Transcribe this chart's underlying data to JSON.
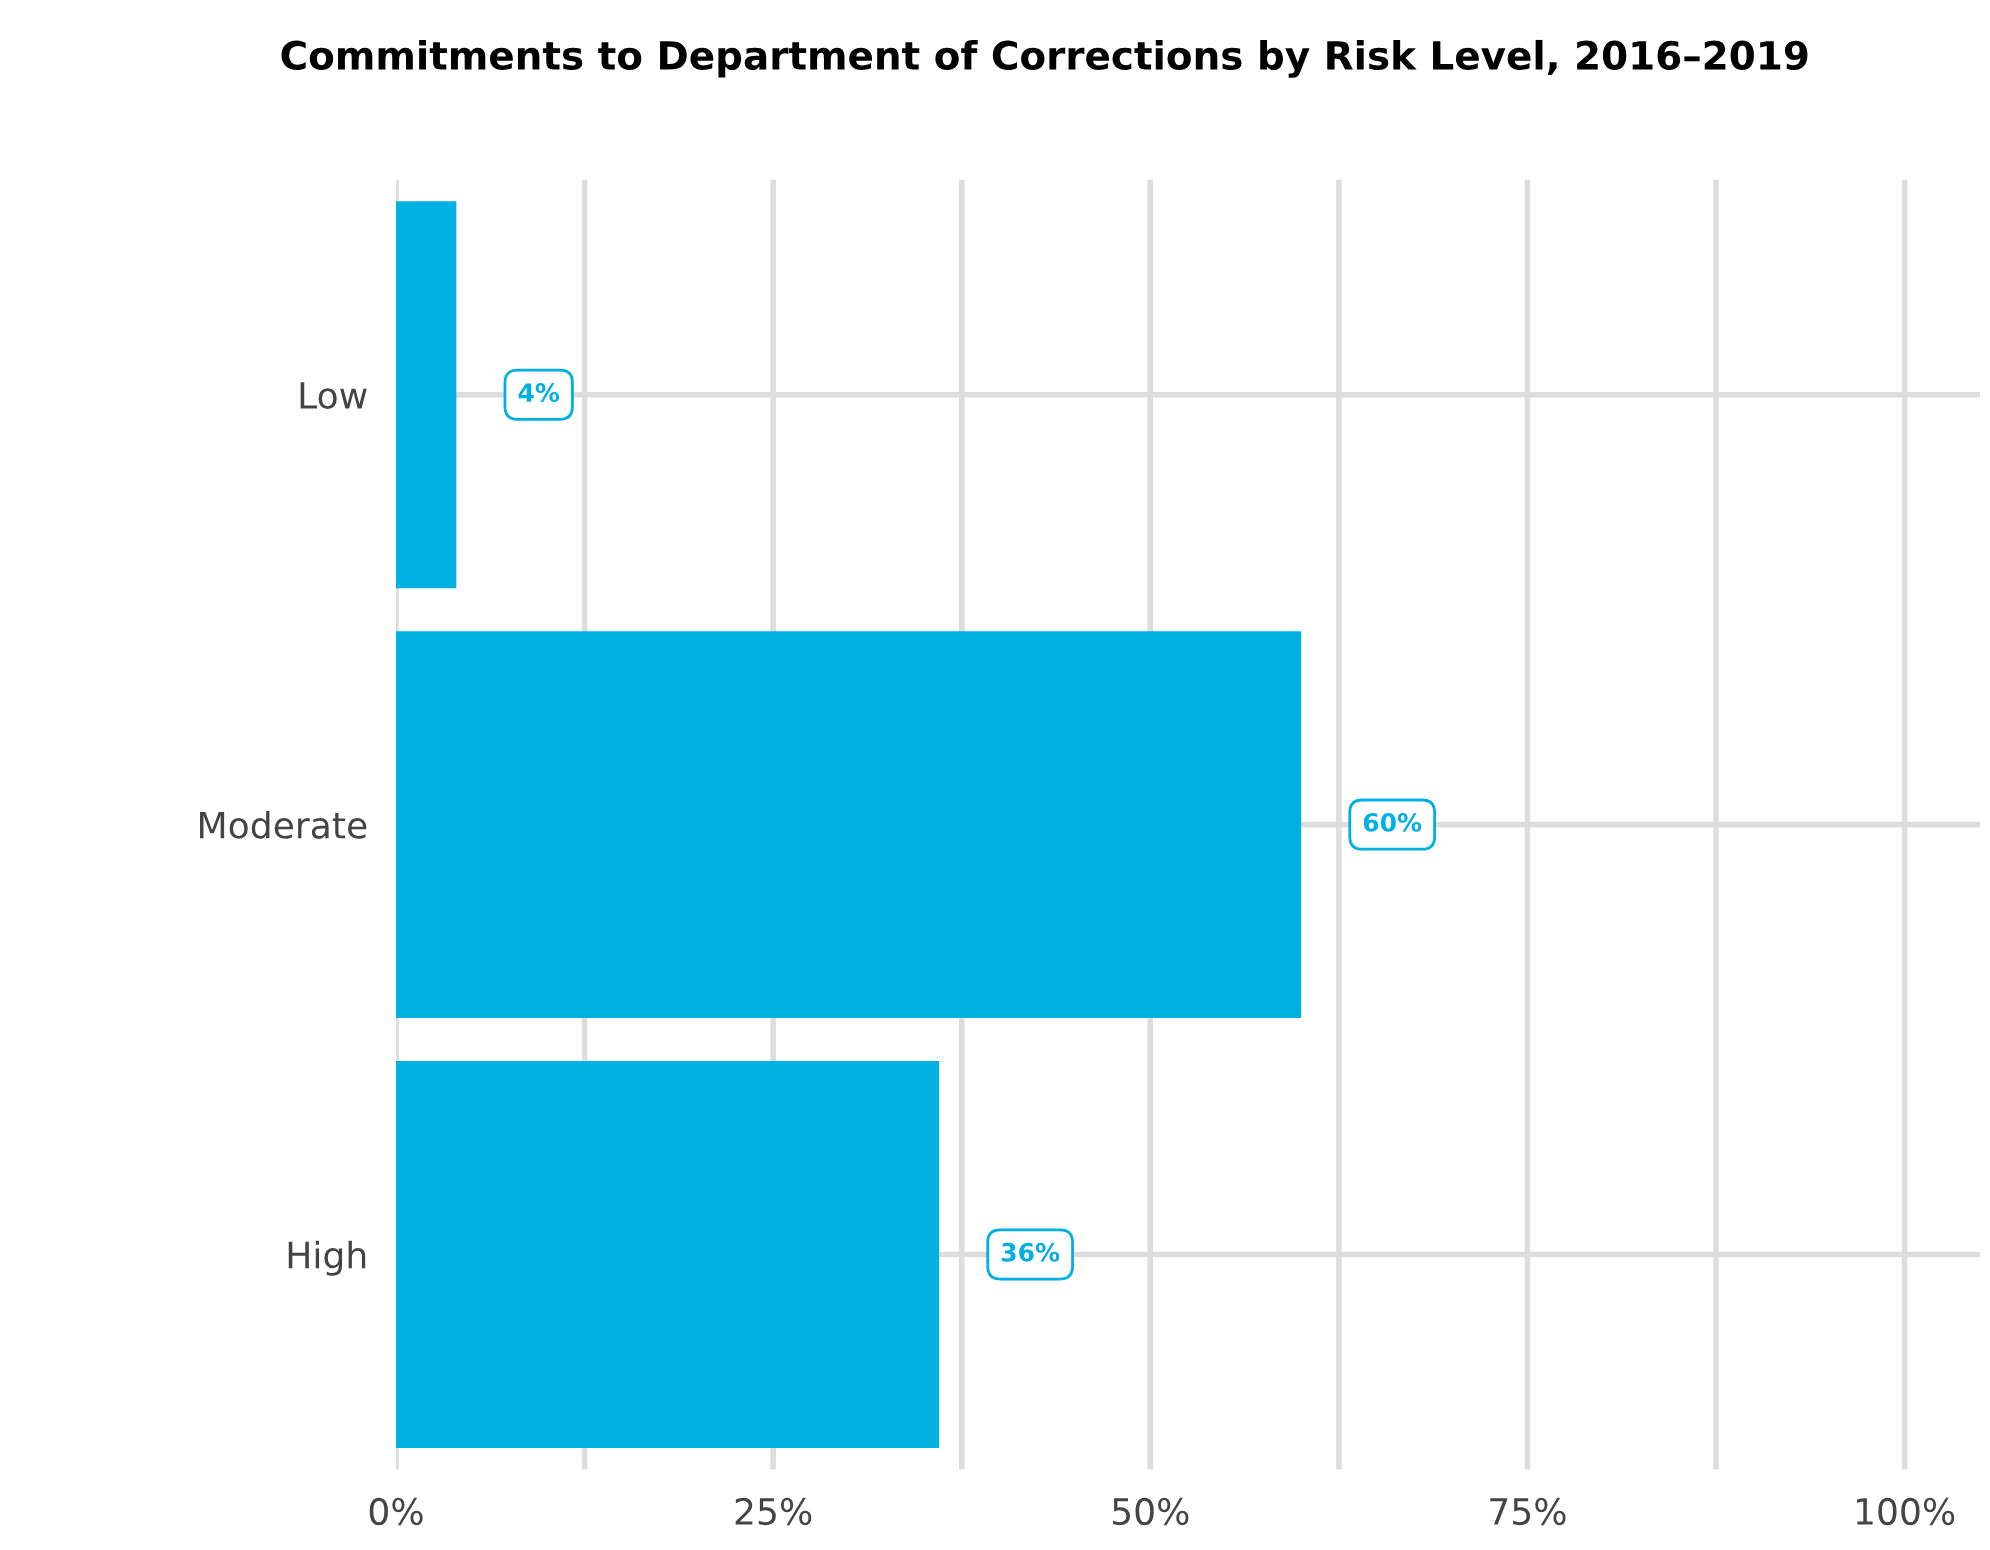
{
  "chart_data": {
    "type": "bar",
    "orientation": "horizontal",
    "title": "Commitments to Department of Corrections by Risk Level, 2016–2019",
    "categories": [
      "Low",
      "Moderate",
      "High"
    ],
    "values": [
      4,
      60,
      36
    ],
    "color": "#00b0e0",
    "value_labels": [
      "4%",
      "60%",
      "36%"
    ],
    "xlim": [
      0,
      105
    ],
    "xticks": [
      {
        "value": 0,
        "label": "0%"
      },
      {
        "value": 12.5,
        "label": null
      },
      {
        "value": 25,
        "label": "25%"
      },
      {
        "value": 37.5,
        "label": null
      },
      {
        "value": 50,
        "label": "50%"
      },
      {
        "value": 62.5,
        "label": null
      },
      {
        "value": 75,
        "label": "75%"
      },
      {
        "value": 87.5,
        "label": null
      },
      {
        "value": 100,
        "label": "100%"
      }
    ],
    "grid": true,
    "legend": false
  }
}
